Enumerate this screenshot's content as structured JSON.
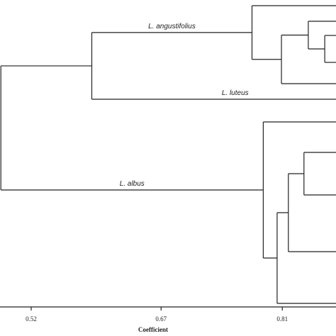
{
  "chart_data": {
    "type": "dendrogram",
    "xlabel": "Coefficient",
    "xlim": [
      0.484,
      0.872
    ],
    "xticks": [
      0.52,
      0.67,
      0.81
    ],
    "tree": {
      "height": 0.485,
      "children": [
        {
          "height": 0.59,
          "children": [
            {
              "label": "L. angustifolius",
              "height": 0.775,
              "children": [
                null,
                {
                  "height": 0.809,
                  "children": [
                    {
                      "height": 0.84,
                      "children": [
                        null,
                        {
                          "height": 0.859,
                          "children": [
                            null,
                            null
                          ]
                        }
                      ]
                    },
                    null
                  ]
                }
              ]
            },
            {
              "label": "L. luteus"
            }
          ]
        },
        {
          "label": "L. albus",
          "height": 0.788,
          "children": [
            null,
            {
              "height": 0.804,
              "children": [
                {
                  "height": 0.817,
                  "children": [
                    {
                      "height": 0.835,
                      "children": [
                        null,
                        null
                      ]
                    },
                    null
                  ]
                },
                null
              ]
            }
          ]
        }
      ]
    }
  }
}
